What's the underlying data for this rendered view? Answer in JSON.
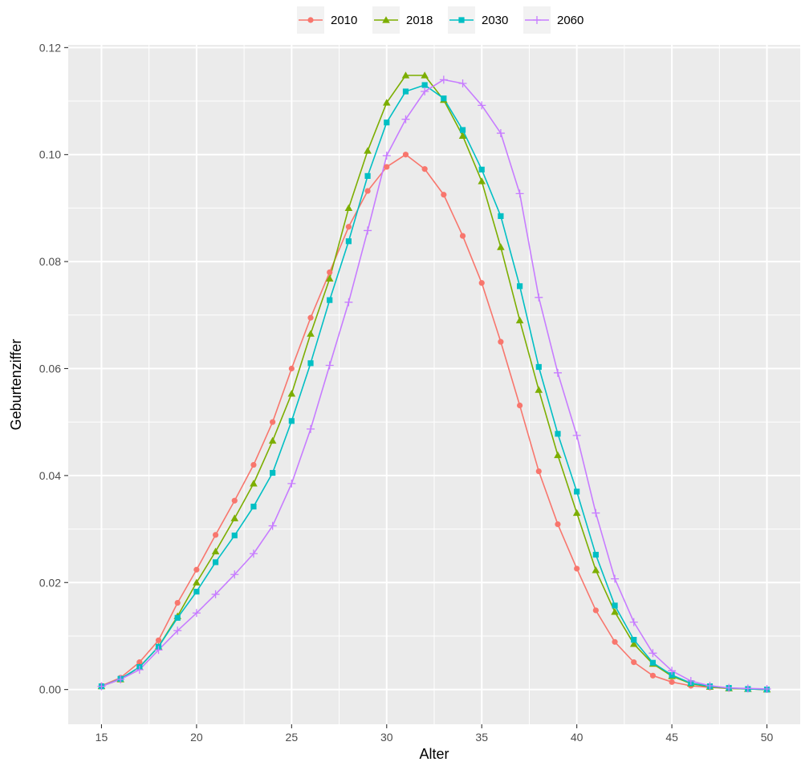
{
  "chart_data": {
    "type": "line",
    "xlabel": "Alter",
    "ylabel": "Geburtenziffer",
    "xlim": [
      13.25,
      51.75
    ],
    "ylim": [
      -0.0065,
      0.1205
    ],
    "x_ticks": [
      15,
      20,
      25,
      30,
      35,
      40,
      45,
      50
    ],
    "y_ticks": [
      0.0,
      0.02,
      0.04,
      0.06,
      0.08,
      0.1,
      0.12
    ],
    "y_tick_labels": [
      "0.00",
      "0.02",
      "0.04",
      "0.06",
      "0.08",
      "0.10",
      "0.12"
    ],
    "grid": true,
    "legend_position": "top",
    "x": [
      15,
      16,
      17,
      18,
      19,
      20,
      21,
      22,
      23,
      24,
      25,
      26,
      27,
      28,
      29,
      30,
      31,
      32,
      33,
      34,
      35,
      36,
      37,
      38,
      39,
      40,
      41,
      42,
      43,
      44,
      45,
      46,
      47,
      48,
      49,
      50
    ],
    "series": [
      {
        "name": "2010",
        "color": "#f8766d",
        "marker": "circle",
        "values": [
          0.0007,
          0.0022,
          0.0051,
          0.0092,
          0.0162,
          0.0224,
          0.0289,
          0.0353,
          0.042,
          0.05,
          0.06,
          0.0695,
          0.078,
          0.0865,
          0.0932,
          0.0977,
          0.1,
          0.0973,
          0.0925,
          0.0848,
          0.076,
          0.065,
          0.0531,
          0.0408,
          0.0309,
          0.0226,
          0.0148,
          0.0089,
          0.0051,
          0.0026,
          0.0014,
          0.0007,
          0.0004,
          0.0002,
          0.0001,
          0.0
        ]
      },
      {
        "name": "2018",
        "color": "#7cae00",
        "marker": "triangle",
        "values": [
          0.0006,
          0.0019,
          0.0042,
          0.008,
          0.0137,
          0.02,
          0.0258,
          0.032,
          0.0385,
          0.0465,
          0.0553,
          0.0665,
          0.0768,
          0.09,
          0.1007,
          0.1097,
          0.1148,
          0.1148,
          0.1102,
          0.1035,
          0.095,
          0.0827,
          0.069,
          0.056,
          0.0438,
          0.033,
          0.0223,
          0.0145,
          0.0085,
          0.0048,
          0.0025,
          0.0011,
          0.0005,
          0.0002,
          0.0001,
          0.0
        ]
      },
      {
        "name": "2030",
        "color": "#00bfc4",
        "marker": "square",
        "values": [
          0.0006,
          0.002,
          0.0042,
          0.008,
          0.0134,
          0.0183,
          0.0238,
          0.0288,
          0.0342,
          0.0405,
          0.0502,
          0.061,
          0.0728,
          0.0838,
          0.096,
          0.106,
          0.1118,
          0.113,
          0.1105,
          0.1046,
          0.0972,
          0.0885,
          0.0754,
          0.0603,
          0.0478,
          0.037,
          0.0252,
          0.0157,
          0.0093,
          0.005,
          0.0027,
          0.0012,
          0.0006,
          0.0003,
          0.0001,
          0.0
        ]
      },
      {
        "name": "2060",
        "color": "#c77cff",
        "marker": "plus",
        "values": [
          0.0006,
          0.0019,
          0.0037,
          0.0074,
          0.011,
          0.0143,
          0.0178,
          0.0215,
          0.0254,
          0.0306,
          0.0385,
          0.0487,
          0.0606,
          0.0724,
          0.0858,
          0.0998,
          0.1066,
          0.1118,
          0.114,
          0.1133,
          0.1092,
          0.104,
          0.0927,
          0.0733,
          0.0592,
          0.0475,
          0.033,
          0.0207,
          0.0126,
          0.0068,
          0.0035,
          0.0016,
          0.0007,
          0.0003,
          0.0002,
          0.0001
        ]
      }
    ]
  }
}
